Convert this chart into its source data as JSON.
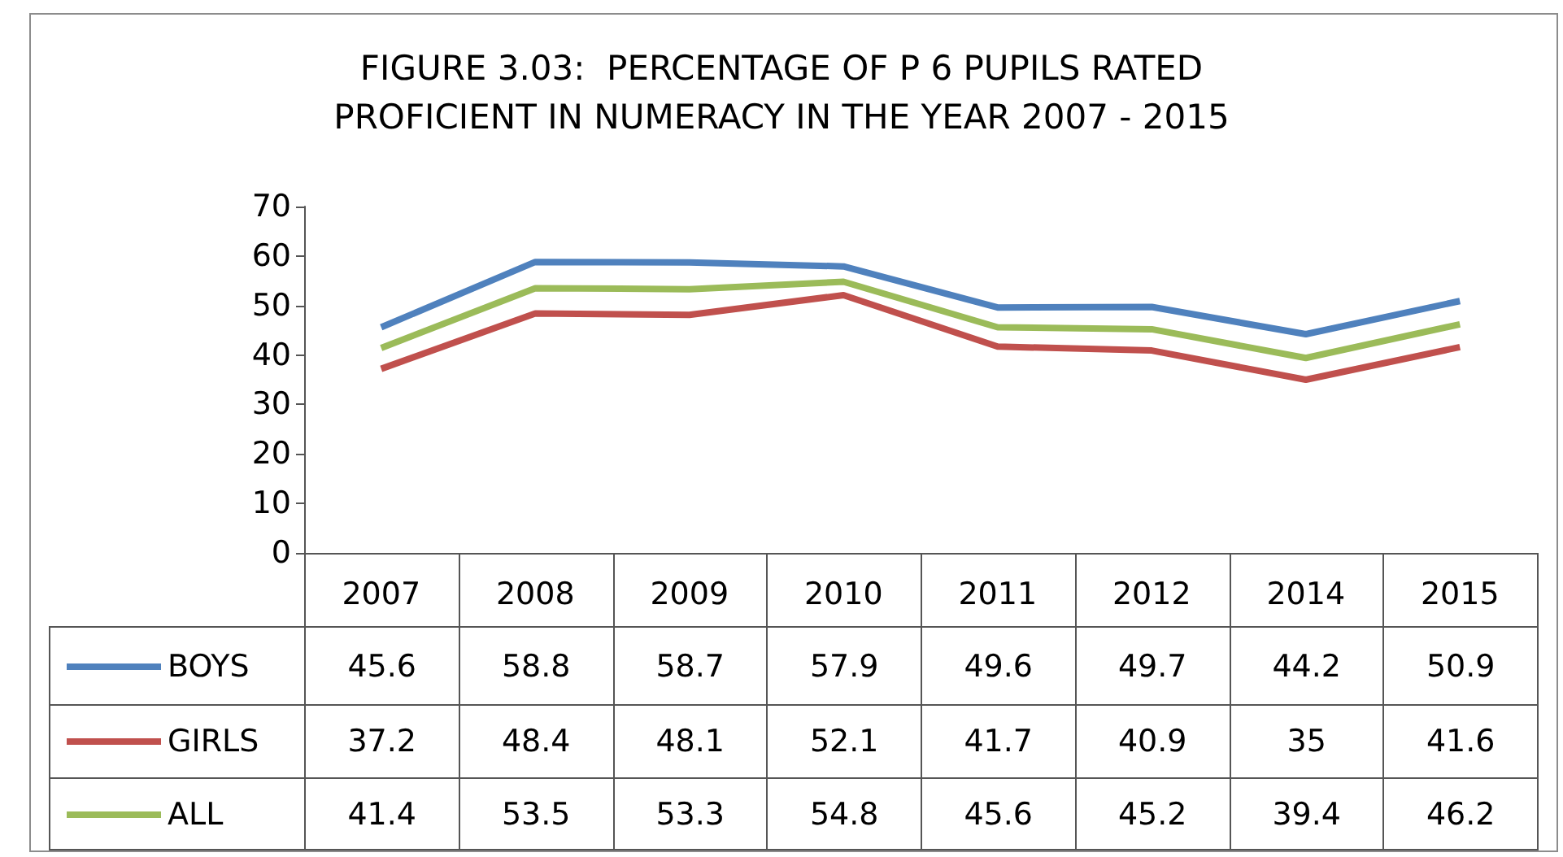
{
  "chart_data": {
    "type": "line",
    "title": "FIGURE 3.03:  PERCENTAGE OF P 6 PUPILS RATED\nPROFICIENT IN NUMERACY IN THE YEAR 2007 - 2015",
    "categories": [
      "2007",
      "2008",
      "2009",
      "2010",
      "2011",
      "2012",
      "2014",
      "2015"
    ],
    "series": [
      {
        "name": "BOYS",
        "color": "#4f81bd",
        "values": [
          45.6,
          58.8,
          58.7,
          57.9,
          49.6,
          49.7,
          44.2,
          50.9
        ]
      },
      {
        "name": "GIRLS",
        "color": "#c0504d",
        "values": [
          37.2,
          48.4,
          48.1,
          52.1,
          41.7,
          40.9,
          35,
          41.6
        ]
      },
      {
        "name": "ALL",
        "color": "#9bbb59",
        "values": [
          41.4,
          53.5,
          53.3,
          54.8,
          45.6,
          45.2,
          39.4,
          46.2
        ]
      }
    ],
    "ylim": [
      0,
      70
    ],
    "yticks": [
      0,
      10,
      20,
      30,
      40,
      50,
      60,
      70
    ],
    "grid": false,
    "legend": "bottom",
    "data_labels": true,
    "marker": "none",
    "line_style": "solid"
  }
}
